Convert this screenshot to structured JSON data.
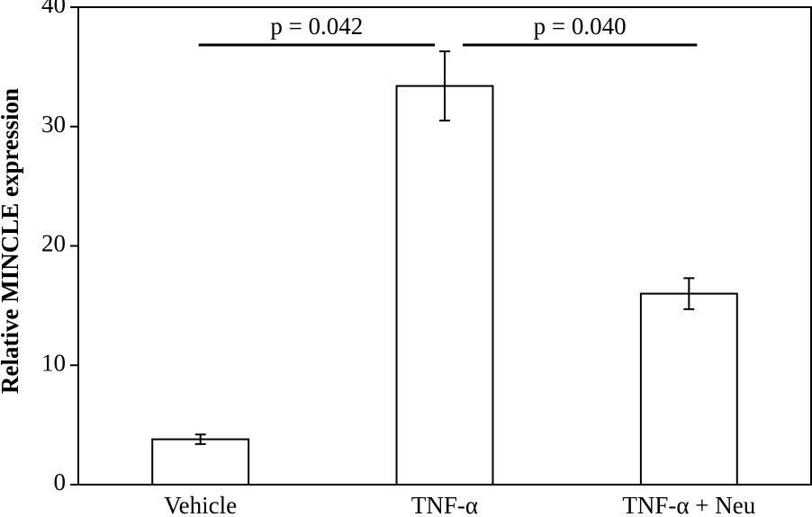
{
  "chart_data": {
    "type": "bar",
    "ylabel": "Relative MINCLE expression",
    "categories": [
      "Vehicle",
      "TNF-α",
      "TNF-α + Neu"
    ],
    "values": [
      3.8,
      33.4,
      16.0
    ],
    "errors": [
      0.4,
      2.9,
      1.3
    ],
    "color": "#ffffff",
    "ylim": [
      0,
      40
    ],
    "yticks": [
      0,
      10,
      20,
      30,
      40
    ],
    "annotations": [
      "p = 0.042",
      "p = 0.040"
    ]
  }
}
